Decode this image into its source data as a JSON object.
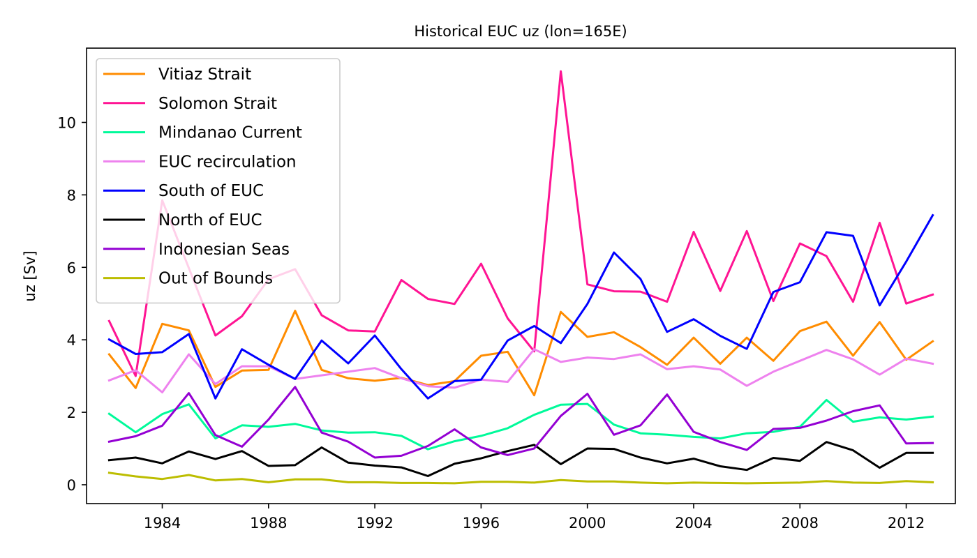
{
  "chart_data": {
    "type": "line",
    "title": "Historical EUC uz (lon=165E)",
    "xlabel": "",
    "ylabel": "uz [Sv]",
    "xlim": [
      1981.15,
      2013.85
    ],
    "ylim": [
      -0.52,
      12.05
    ],
    "xticks": [
      1984,
      1988,
      1992,
      1996,
      2000,
      2004,
      2008,
      2012
    ],
    "yticks": [
      0,
      2,
      4,
      6,
      8,
      10
    ],
    "grid": false,
    "legend_position": "upper-left",
    "x": [
      1982,
      1983,
      1984,
      1985,
      1986,
      1987,
      1988,
      1989,
      1990,
      1991,
      1992,
      1993,
      1994,
      1995,
      1996,
      1997,
      1998,
      1999,
      2000,
      2001,
      2002,
      2003,
      2004,
      2005,
      2006,
      2007,
      2008,
      2009,
      2010,
      2011,
      2012,
      2013
    ],
    "series": [
      {
        "name": "Vitiaz Strait",
        "color": "#ff8c00",
        "values": [
          3.6,
          2.67,
          4.44,
          4.26,
          2.7,
          3.15,
          3.17,
          4.8,
          3.17,
          2.94,
          2.87,
          2.95,
          2.75,
          2.86,
          3.56,
          3.67,
          2.47,
          4.77,
          4.08,
          4.21,
          3.8,
          3.31,
          4.06,
          3.34,
          4.06,
          3.42,
          4.24,
          4.5,
          3.56,
          4.49,
          3.45,
          3.96
        ]
      },
      {
        "name": "Solomon Strait",
        "color": "#ff1493",
        "values": [
          4.52,
          3.0,
          7.85,
          5.98,
          4.12,
          4.65,
          5.67,
          5.95,
          4.68,
          4.26,
          4.23,
          5.65,
          5.13,
          4.99,
          6.1,
          4.59,
          3.68,
          11.41,
          5.53,
          5.34,
          5.33,
          5.05,
          6.98,
          5.35,
          7.0,
          5.07,
          6.66,
          6.31,
          5.05,
          7.23,
          5.0,
          5.25
        ]
      },
      {
        "name": "Mindanao Current",
        "color": "#00fa9a",
        "values": [
          1.96,
          1.45,
          1.95,
          2.22,
          1.28,
          1.64,
          1.6,
          1.68,
          1.5,
          1.44,
          1.45,
          1.35,
          0.98,
          1.2,
          1.35,
          1.56,
          1.93,
          2.21,
          2.23,
          1.66,
          1.42,
          1.38,
          1.32,
          1.28,
          1.42,
          1.46,
          1.6,
          2.34,
          1.74,
          1.86,
          1.8,
          1.88
        ]
      },
      {
        "name": "EUC recirculation",
        "color": "#ee82ee",
        "values": [
          2.88,
          3.16,
          2.55,
          3.6,
          2.78,
          3.27,
          3.27,
          2.92,
          3.02,
          3.12,
          3.22,
          2.94,
          2.72,
          2.68,
          2.9,
          2.84,
          3.74,
          3.39,
          3.51,
          3.47,
          3.6,
          3.19,
          3.27,
          3.18,
          2.73,
          3.12,
          3.42,
          3.72,
          3.46,
          3.04,
          3.48,
          3.34
        ]
      },
      {
        "name": "South of EUC",
        "color": "#0000ff",
        "values": [
          4.01,
          3.61,
          3.66,
          4.16,
          2.38,
          3.74,
          3.31,
          2.92,
          3.98,
          3.35,
          4.12,
          3.19,
          2.38,
          2.86,
          2.9,
          3.98,
          4.38,
          3.91,
          4.99,
          6.41,
          5.68,
          4.22,
          4.57,
          4.11,
          3.75,
          5.32,
          5.59,
          6.97,
          6.87,
          4.95,
          6.16,
          7.44
        ]
      },
      {
        "name": "North of EUC",
        "color": "#000000",
        "values": [
          0.68,
          0.75,
          0.59,
          0.92,
          0.71,
          0.93,
          0.52,
          0.54,
          1.03,
          0.61,
          0.53,
          0.48,
          0.24,
          0.58,
          0.73,
          0.93,
          1.1,
          0.57,
          1.0,
          0.99,
          0.75,
          0.59,
          0.72,
          0.51,
          0.41,
          0.74,
          0.66,
          1.18,
          0.95,
          0.47,
          0.88,
          0.88
        ]
      },
      {
        "name": "Indonesian Seas",
        "color": "#9400d3",
        "values": [
          1.19,
          1.34,
          1.63,
          2.53,
          1.37,
          1.05,
          1.8,
          2.7,
          1.44,
          1.19,
          0.75,
          0.8,
          1.07,
          1.53,
          1.03,
          0.82,
          1.0,
          1.9,
          2.51,
          1.38,
          1.64,
          2.49,
          1.46,
          1.18,
          0.96,
          1.54,
          1.57,
          1.77,
          2.03,
          2.19,
          1.14,
          1.15
        ]
      },
      {
        "name": "Out of Bounds",
        "color": "#bcbd00",
        "values": [
          0.33,
          0.23,
          0.16,
          0.27,
          0.12,
          0.16,
          0.07,
          0.15,
          0.15,
          0.07,
          0.07,
          0.05,
          0.05,
          0.04,
          0.08,
          0.08,
          0.06,
          0.13,
          0.09,
          0.09,
          0.06,
          0.04,
          0.06,
          0.05,
          0.04,
          0.05,
          0.06,
          0.1,
          0.06,
          0.05,
          0.1,
          0.07
        ]
      }
    ]
  }
}
